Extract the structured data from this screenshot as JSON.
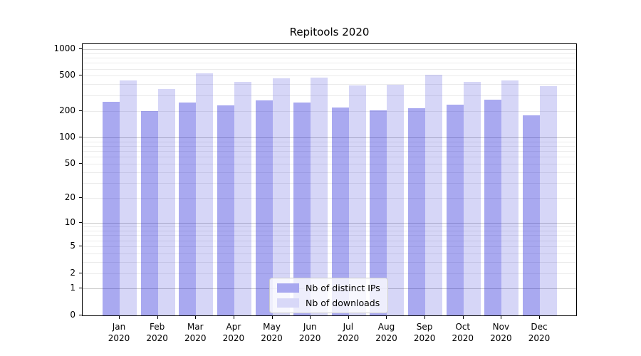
{
  "title": "Repitools 2020",
  "chart_data": {
    "type": "bar",
    "title": "Repitools 2020",
    "xlabel": "",
    "ylabel": "",
    "scale": "log1p",
    "grid": true,
    "legend_position": "lower center",
    "months": [
      "Jan",
      "Feb",
      "Mar",
      "Apr",
      "May",
      "Jun",
      "Jul",
      "Aug",
      "Sep",
      "Oct",
      "Nov",
      "Dec"
    ],
    "year_label": "2020",
    "categories": [
      "Jan 2020",
      "Feb 2020",
      "Mar 2020",
      "Apr 2020",
      "May 2020",
      "Jun 2020",
      "Jul 2020",
      "Aug 2020",
      "Sep 2020",
      "Oct 2020",
      "Nov 2020",
      "Dec 2020"
    ],
    "yticks": [
      0,
      1,
      2,
      5,
      10,
      20,
      50,
      100,
      200,
      500,
      1000
    ],
    "ylim": [
      0,
      1136
    ],
    "series": [
      {
        "name": "Nb of distinct IPs",
        "color": "#a8a8f0",
        "fill": "rgba(10,10,212,0.35)",
        "values": [
          255,
          200,
          250,
          230,
          262,
          250,
          220,
          205,
          215,
          235,
          270,
          178
        ]
      },
      {
        "name": "Nb of downloads",
        "color": "#d8d8f8",
        "fill": "rgba(0,0,208,0.16)",
        "values": [
          445,
          355,
          535,
          430,
          465,
          480,
          390,
          395,
          515,
          425,
          440,
          385
        ]
      }
    ],
    "grid_colors": {
      "major": "#c9c9c9",
      "minor": "#ebebeb"
    }
  }
}
